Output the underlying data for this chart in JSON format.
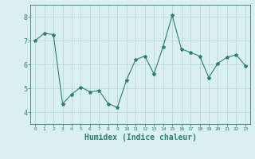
{
  "x": [
    0,
    1,
    2,
    3,
    4,
    5,
    6,
    7,
    8,
    9,
    10,
    11,
    12,
    13,
    14,
    15,
    16,
    17,
    18,
    19,
    20,
    21,
    22,
    23
  ],
  "y": [
    7.0,
    7.3,
    7.25,
    4.35,
    4.75,
    5.05,
    4.85,
    4.9,
    4.35,
    4.2,
    5.35,
    6.2,
    6.35,
    5.6,
    6.75,
    8.05,
    6.65,
    6.5,
    6.35,
    5.45,
    6.05,
    6.3,
    6.4,
    5.95
  ],
  "line_color": "#2e7d6e",
  "marker": "*",
  "marker_size": 3,
  "bg_color": "#d9f0ee",
  "grid_color": "#aed4ce",
  "tick_color": "#2e7d6e",
  "xlabel": "Humidex (Indice chaleur)",
  "xlabel_fontsize": 7,
  "ylim": [
    3.5,
    8.5
  ],
  "xlim": [
    -0.5,
    23.5
  ],
  "yticks": [
    4,
    5,
    6,
    7,
    8
  ],
  "xticks": [
    0,
    1,
    2,
    3,
    4,
    5,
    6,
    7,
    8,
    9,
    10,
    11,
    12,
    13,
    14,
    15,
    16,
    17,
    18,
    19,
    20,
    21,
    22,
    23
  ]
}
